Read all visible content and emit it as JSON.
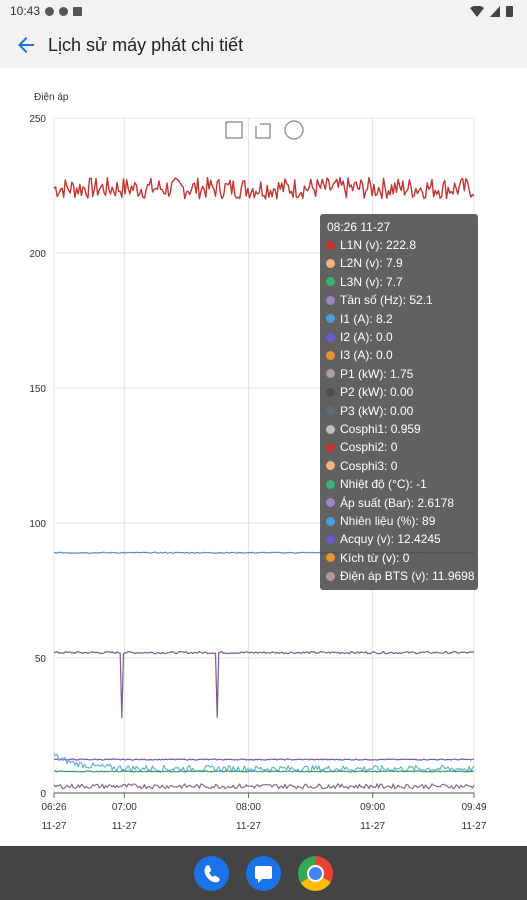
{
  "status_bar": {
    "time": "10:43"
  },
  "header": {
    "title": "Lịch sử máy phát chi tiết"
  },
  "chart_data": {
    "type": "line",
    "ylabel": "Điện áp",
    "ylim": [
      0,
      250
    ],
    "y_ticks": [
      "0",
      "50",
      "100",
      "150",
      "200",
      "250"
    ],
    "x_ticks": [
      {
        "time": "06:26",
        "date": "11-27"
      },
      {
        "time": "07:00",
        "date": "11-27"
      },
      {
        "time": "08:00",
        "date": "11-27"
      },
      {
        "time": "09:00",
        "date": "11-27"
      },
      {
        "time": "09:49",
        "date": "11-27"
      }
    ],
    "x_minutes": [
      386,
      420,
      480,
      540,
      589
    ],
    "grid": true,
    "series": [
      {
        "name": "L1N (v)",
        "color": "#c23531",
        "level": 224,
        "jitter": 4
      },
      {
        "name": "Ấp suất (Bar)",
        "color": "#7a5c8a",
        "level": 52,
        "jitter": 0.4,
        "dips": [
          {
            "x": 0.16,
            "to": 28
          },
          {
            "x": 0.39,
            "to": 28
          }
        ]
      },
      {
        "name": "Nhiên liệu (%)",
        "color": "#4b8fd0",
        "level": 89,
        "jitter": 0.2
      },
      {
        "name": "Acquy (v)",
        "color": "#6f5aa6",
        "level": 12.4,
        "jitter": 0.2
      },
      {
        "name": "Cosphi1",
        "color": "#6baed6",
        "start": 14,
        "level": 9,
        "jitter": 1.2
      },
      {
        "name": "Nhiệt độ (°C)",
        "color": "#2e9e5b",
        "level": 8,
        "jitter": 0.2
      },
      {
        "name": "Điện áp BTS (v)",
        "color": "#8a6a8a",
        "level": 2.5,
        "jitter": 0.9
      }
    ],
    "tooltip": {
      "title": "08:26 11-27",
      "rows": [
        {
          "label": "L1N (v): 222.8",
          "color": "#c23531"
        },
        {
          "label": "L2N (v): 7.9",
          "color": "#f4b183"
        },
        {
          "label": "L3N (v): 7.7",
          "color": "#3bb273"
        },
        {
          "label": "Tần số (Hz): 52.1",
          "color": "#9f86c0"
        },
        {
          "label": "I1 (A): 8.2",
          "color": "#4b9fd5"
        },
        {
          "label": "I2 (A): 0.0",
          "color": "#6a5acd"
        },
        {
          "label": "I3 (A): 0.0",
          "color": "#e8932d"
        },
        {
          "label": "P1 (kW): 1.75",
          "color": "#b09a9a"
        },
        {
          "label": "P2 (kW): 0.00",
          "color": "#4e4e4e"
        },
        {
          "label": "P3 (kW): 0.00",
          "color": "#5d6d7e"
        },
        {
          "label": "Cosphi1: 0.959",
          "color": "#bdbdbd"
        },
        {
          "label": "Cosphi2: 0",
          "color": "#c23531"
        },
        {
          "label": "Cosphi3: 0",
          "color": "#f4b183"
        },
        {
          "label": "Nhiệt độ (°C): -1",
          "color": "#3bb273"
        },
        {
          "label": "Áp suất (Bar): 2.6178",
          "color": "#9f86c0"
        },
        {
          "label": "Nhiên liệu (%): 89",
          "color": "#4b9fd5"
        },
        {
          "label": "Acquy (v): 12.4245",
          "color": "#6a5acd"
        },
        {
          "label": "Kích từ (v): 0",
          "color": "#e8932d"
        },
        {
          "label": "Điện áp BTS (v): 11.9698",
          "color": "#b09a9a"
        }
      ]
    }
  }
}
